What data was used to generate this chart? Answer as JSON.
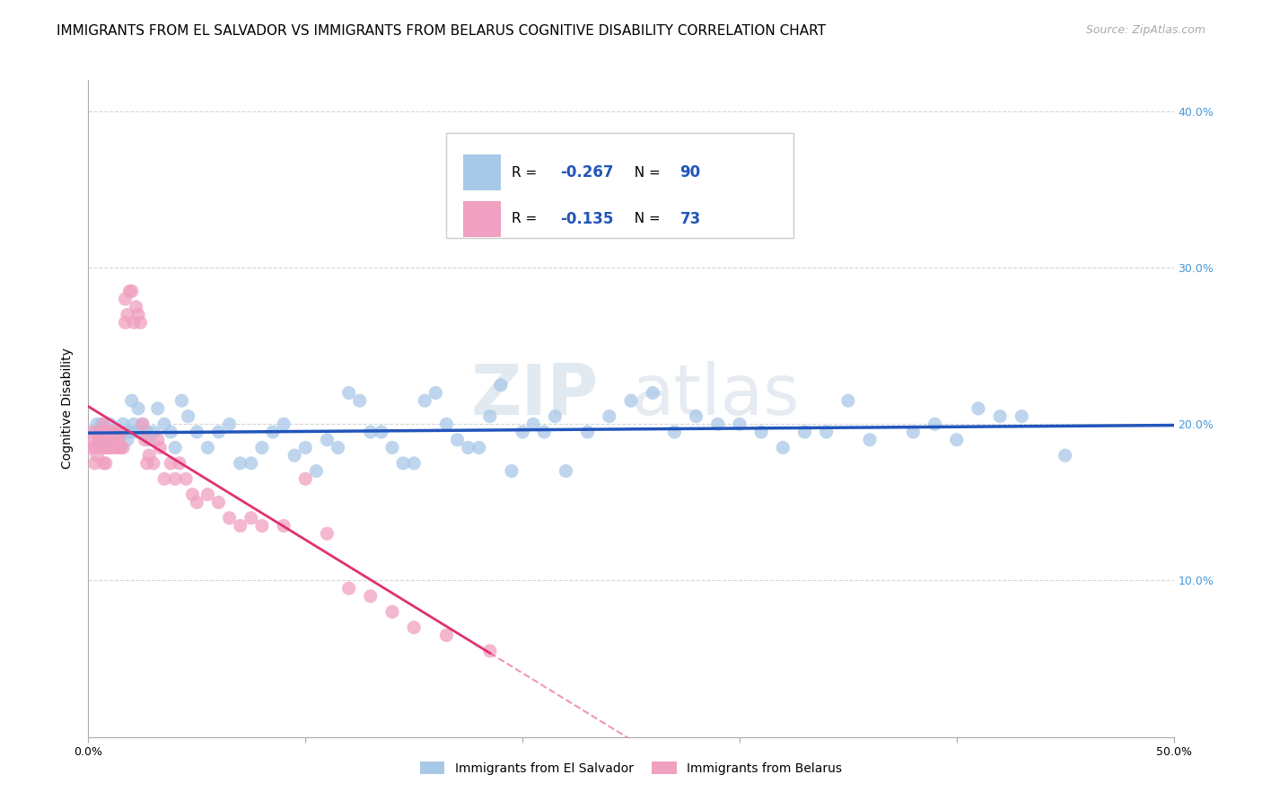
{
  "title": "IMMIGRANTS FROM EL SALVADOR VS IMMIGRANTS FROM BELARUS COGNITIVE DISABILITY CORRELATION CHART",
  "source": "Source: ZipAtlas.com",
  "ylabel": "Cognitive Disability",
  "xlim": [
    0.0,
    0.5
  ],
  "ylim": [
    0.0,
    0.42
  ],
  "xticks": [
    0.0,
    0.1,
    0.2,
    0.3,
    0.4,
    0.5
  ],
  "yticks": [
    0.0,
    0.1,
    0.2,
    0.3,
    0.4
  ],
  "xtick_labels": [
    "0.0%",
    "",
    "",
    "",
    "",
    "50.0%"
  ],
  "ytick_right_labels": [
    "",
    "10.0%",
    "20.0%",
    "30.0%",
    "40.0%"
  ],
  "watermark": "ZIPatlas",
  "series1_label": "Immigrants from El Salvador",
  "series2_label": "Immigrants from Belarus",
  "series1_color": "#a8c8e8",
  "series2_color": "#f0a0c0",
  "series1_line_color": "#2255bb",
  "series2_line_color": "#e03070",
  "series1_R": "-0.267",
  "series1_N": "90",
  "series2_R": "-0.135",
  "series2_N": "73",
  "legend_color": "#2255bb",
  "title_fontsize": 11,
  "axis_label_fontsize": 10,
  "tick_fontsize": 9,
  "series1_x": [
    0.003,
    0.004,
    0.005,
    0.006,
    0.007,
    0.007,
    0.008,
    0.009,
    0.01,
    0.01,
    0.011,
    0.012,
    0.013,
    0.014,
    0.015,
    0.016,
    0.017,
    0.018,
    0.019,
    0.02,
    0.021,
    0.022,
    0.023,
    0.024,
    0.025,
    0.027,
    0.028,
    0.03,
    0.032,
    0.035,
    0.038,
    0.04,
    0.043,
    0.046,
    0.05,
    0.055,
    0.06,
    0.065,
    0.07,
    0.075,
    0.08,
    0.085,
    0.09,
    0.095,
    0.1,
    0.105,
    0.11,
    0.115,
    0.12,
    0.125,
    0.13,
    0.135,
    0.14,
    0.145,
    0.15,
    0.155,
    0.16,
    0.165,
    0.17,
    0.175,
    0.18,
    0.185,
    0.19,
    0.195,
    0.2,
    0.205,
    0.21,
    0.215,
    0.22,
    0.23,
    0.24,
    0.25,
    0.26,
    0.27,
    0.28,
    0.29,
    0.3,
    0.31,
    0.32,
    0.33,
    0.34,
    0.35,
    0.36,
    0.38,
    0.39,
    0.4,
    0.41,
    0.42,
    0.43,
    0.45
  ],
  "series1_y": [
    0.195,
    0.2,
    0.19,
    0.2,
    0.195,
    0.185,
    0.19,
    0.195,
    0.19,
    0.2,
    0.195,
    0.195,
    0.195,
    0.19,
    0.185,
    0.2,
    0.195,
    0.19,
    0.195,
    0.215,
    0.2,
    0.195,
    0.21,
    0.195,
    0.2,
    0.195,
    0.19,
    0.195,
    0.21,
    0.2,
    0.195,
    0.185,
    0.215,
    0.205,
    0.195,
    0.185,
    0.195,
    0.2,
    0.175,
    0.175,
    0.185,
    0.195,
    0.2,
    0.18,
    0.185,
    0.17,
    0.19,
    0.185,
    0.22,
    0.215,
    0.195,
    0.195,
    0.185,
    0.175,
    0.175,
    0.215,
    0.22,
    0.2,
    0.19,
    0.185,
    0.185,
    0.205,
    0.225,
    0.17,
    0.195,
    0.2,
    0.195,
    0.205,
    0.17,
    0.195,
    0.205,
    0.215,
    0.22,
    0.195,
    0.205,
    0.2,
    0.2,
    0.195,
    0.185,
    0.195,
    0.195,
    0.215,
    0.19,
    0.195,
    0.2,
    0.19,
    0.21,
    0.205,
    0.205,
    0.18
  ],
  "series2_x": [
    0.001,
    0.002,
    0.002,
    0.003,
    0.003,
    0.004,
    0.004,
    0.005,
    0.005,
    0.006,
    0.006,
    0.006,
    0.007,
    0.007,
    0.007,
    0.008,
    0.008,
    0.008,
    0.009,
    0.009,
    0.009,
    0.01,
    0.01,
    0.01,
    0.011,
    0.011,
    0.012,
    0.012,
    0.013,
    0.013,
    0.014,
    0.014,
    0.015,
    0.015,
    0.016,
    0.017,
    0.017,
    0.018,
    0.019,
    0.02,
    0.021,
    0.022,
    0.023,
    0.024,
    0.025,
    0.026,
    0.027,
    0.028,
    0.03,
    0.032,
    0.033,
    0.035,
    0.038,
    0.04,
    0.042,
    0.045,
    0.048,
    0.05,
    0.055,
    0.06,
    0.065,
    0.07,
    0.075,
    0.08,
    0.09,
    0.1,
    0.11,
    0.12,
    0.13,
    0.14,
    0.15,
    0.165,
    0.185
  ],
  "series2_y": [
    0.185,
    0.19,
    0.195,
    0.185,
    0.175,
    0.185,
    0.18,
    0.195,
    0.19,
    0.19,
    0.185,
    0.195,
    0.2,
    0.175,
    0.185,
    0.19,
    0.185,
    0.175,
    0.195,
    0.19,
    0.185,
    0.195,
    0.185,
    0.195,
    0.195,
    0.185,
    0.195,
    0.19,
    0.195,
    0.185,
    0.185,
    0.19,
    0.185,
    0.195,
    0.185,
    0.265,
    0.28,
    0.27,
    0.285,
    0.285,
    0.265,
    0.275,
    0.27,
    0.265,
    0.2,
    0.19,
    0.175,
    0.18,
    0.175,
    0.19,
    0.185,
    0.165,
    0.175,
    0.165,
    0.175,
    0.165,
    0.155,
    0.15,
    0.155,
    0.15,
    0.14,
    0.135,
    0.14,
    0.135,
    0.135,
    0.165,
    0.13,
    0.095,
    0.09,
    0.08,
    0.07,
    0.065,
    0.055
  ]
}
